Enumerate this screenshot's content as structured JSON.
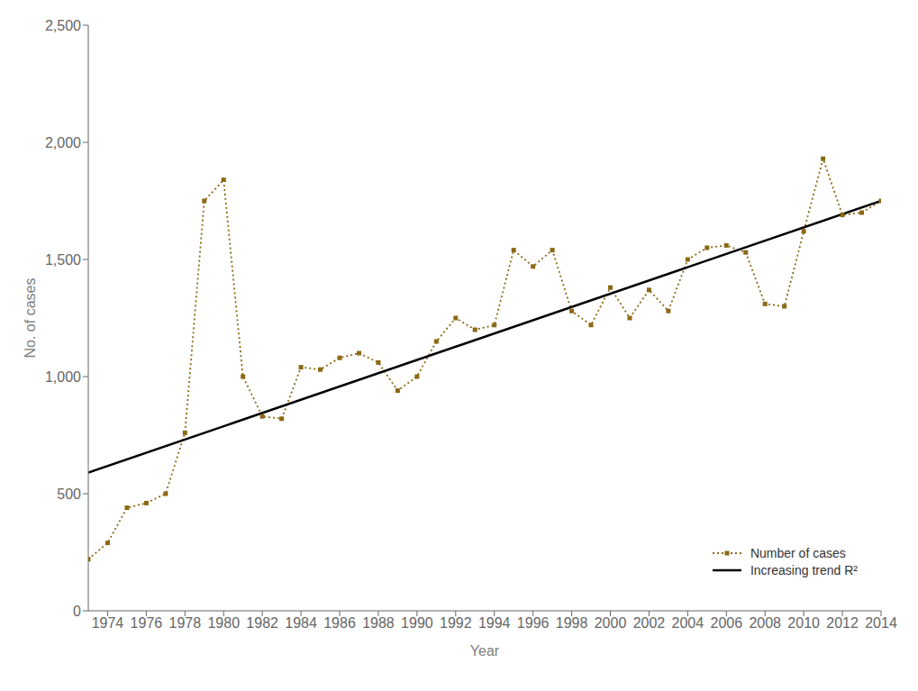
{
  "chart_data": {
    "type": "line",
    "xlabel": "Year",
    "ylabel": "No. of cases",
    "xlim": [
      1973,
      2014
    ],
    "xticks": [
      1974,
      1976,
      1978,
      1980,
      1982,
      1984,
      1986,
      1988,
      1990,
      1992,
      1994,
      1996,
      1998,
      2000,
      2002,
      2004,
      2006,
      2008,
      2010,
      2012,
      2014
    ],
    "ylim": [
      0,
      2500
    ],
    "yticks": [
      0,
      500,
      {
        "value": 1000,
        "label": "1,000"
      },
      {
        "value": 1500,
        "label": "1,500"
      },
      {
        "value": 2000,
        "label": "2,000"
      },
      {
        "value": 2500,
        "label": "2,500"
      }
    ],
    "grid": false,
    "legend": "lower right",
    "series": [
      {
        "name": "Number of cases",
        "color": "#8B6914",
        "line_style": "dotted",
        "marker": "square",
        "x": [
          1973,
          1974,
          1975,
          1976,
          1977,
          1978,
          1979,
          1980,
          1981,
          1982,
          1983,
          1984,
          1985,
          1986,
          1987,
          1988,
          1989,
          1990,
          1991,
          1992,
          1993,
          1994,
          1995,
          1996,
          1997,
          1998,
          1999,
          2000,
          2001,
          2002,
          2003,
          2004,
          2005,
          2006,
          2007,
          2008,
          2009,
          2010,
          2011,
          2012,
          2013,
          2014
        ],
        "values": [
          220,
          290,
          440,
          460,
          500,
          760,
          1750,
          1840,
          1000,
          830,
          820,
          1040,
          1030,
          1080,
          1100,
          1060,
          940,
          1000,
          1150,
          1250,
          1200,
          1220,
          1540,
          1470,
          1540,
          1280,
          1220,
          1380,
          1250,
          1370,
          1280,
          1500,
          1550,
          1560,
          1530,
          1310,
          1300,
          1620,
          1930,
          1690,
          1700,
          1750
        ]
      },
      {
        "name": "Increasing trend R²",
        "color": "#000000",
        "line_style": "solid",
        "marker": "none",
        "x": [
          1973,
          2014
        ],
        "values": [
          590,
          1750
        ]
      }
    ]
  }
}
